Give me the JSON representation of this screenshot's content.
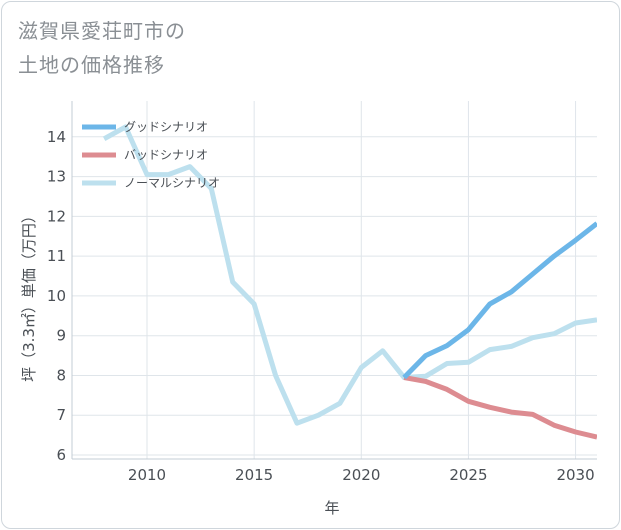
{
  "header": {
    "title_line1": "滋賀県愛荘町市の",
    "title_line2": "土地の価格推移"
  },
  "chart_data": {
    "type": "line",
    "xlabel": "年",
    "ylabel": "坪（3.3㎡）単価（万円）",
    "xlim": [
      2006.5,
      2031
    ],
    "ylim": [
      5.9,
      14.9
    ],
    "x_ticks": [
      2010,
      2015,
      2020,
      2025,
      2030
    ],
    "y_ticks": [
      6,
      7,
      8,
      9,
      10,
      11,
      12,
      13,
      14
    ],
    "grid": true,
    "legend_position": "top-left",
    "series": [
      {
        "name": "グッドシナリオ",
        "color": "#6cb6e8",
        "x": [
          2022,
          2023,
          2024,
          2025,
          2026,
          2027,
          2028,
          2029,
          2030,
          2031
        ],
        "y": [
          7.95,
          8.5,
          8.75,
          9.15,
          9.8,
          10.1,
          10.55,
          11.0,
          11.4,
          11.82
        ]
      },
      {
        "name": "バッドシナリオ",
        "color": "#dd8c91",
        "x": [
          2022,
          2023,
          2024,
          2025,
          2026,
          2027,
          2028,
          2029,
          2030,
          2031
        ],
        "y": [
          7.95,
          7.85,
          7.65,
          7.35,
          7.2,
          7.08,
          7.02,
          6.75,
          6.58,
          6.45
        ]
      },
      {
        "name": "ノーマルシナリオ",
        "color": "#bde0ee",
        "x": [
          2008,
          2009,
          2010,
          2011,
          2012,
          2013,
          2014,
          2015,
          2016,
          2017,
          2018,
          2019,
          2020,
          2021,
          2022,
          2023,
          2024,
          2025,
          2026,
          2027,
          2028,
          2029,
          2030,
          2031
        ],
        "y": [
          13.95,
          14.25,
          13.05,
          13.05,
          13.25,
          12.7,
          10.35,
          9.8,
          8.0,
          6.8,
          7.0,
          7.3,
          8.2,
          8.62,
          7.95,
          7.98,
          8.3,
          8.33,
          8.65,
          8.73,
          8.95,
          9.05,
          9.32,
          9.4
        ]
      }
    ]
  }
}
